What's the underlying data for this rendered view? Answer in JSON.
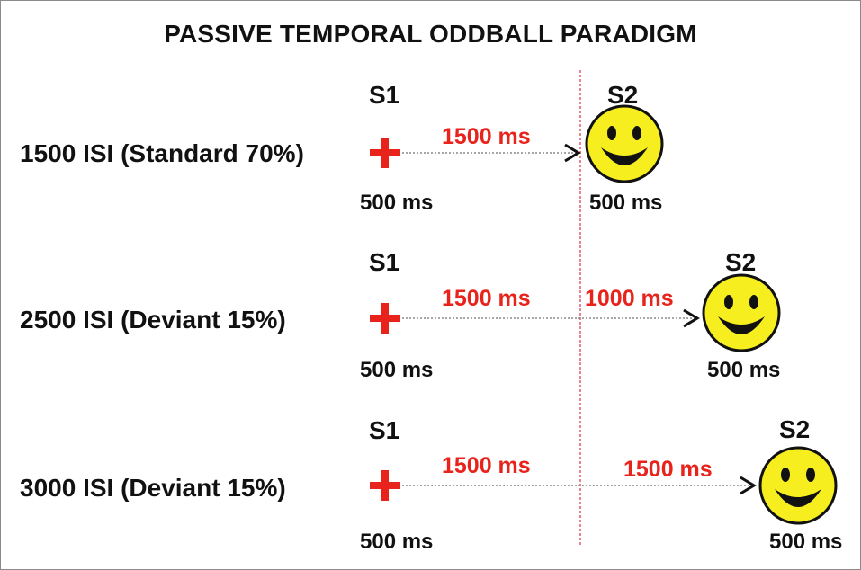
{
  "title": "PASSIVE TEMPORAL ODDBALL PARADIGM",
  "colors": {
    "cross": "#e8231c",
    "interval_text": "#e8231c",
    "divider": "#e65a6e",
    "arrow_line": "#8a8a8a",
    "smiley_fill": "#f6ee1e",
    "smiley_stroke": "#111111"
  },
  "icons": {
    "cross": "plus-cross-icon",
    "face": "smiley-face-icon"
  },
  "rows": [
    {
      "condition": "1500 ISI (Standard 70%)",
      "s1_label": "S1",
      "s1_duration": "500 ms",
      "s2_label": "S2",
      "s2_duration": "500 ms",
      "intervals": [
        "1500 ms"
      ]
    },
    {
      "condition": "2500 ISI (Deviant 15%)",
      "s1_label": "S1",
      "s1_duration": "500 ms",
      "s2_label": "S2",
      "s2_duration": "500 ms",
      "intervals": [
        "1500 ms",
        "1000 ms"
      ]
    },
    {
      "condition": "3000 ISI (Deviant 15%)",
      "s1_label": "S1",
      "s1_duration": "500 ms",
      "s2_label": "S2",
      "s2_duration": "500 ms",
      "intervals": [
        "1500 ms",
        "1500 ms"
      ]
    }
  ]
}
